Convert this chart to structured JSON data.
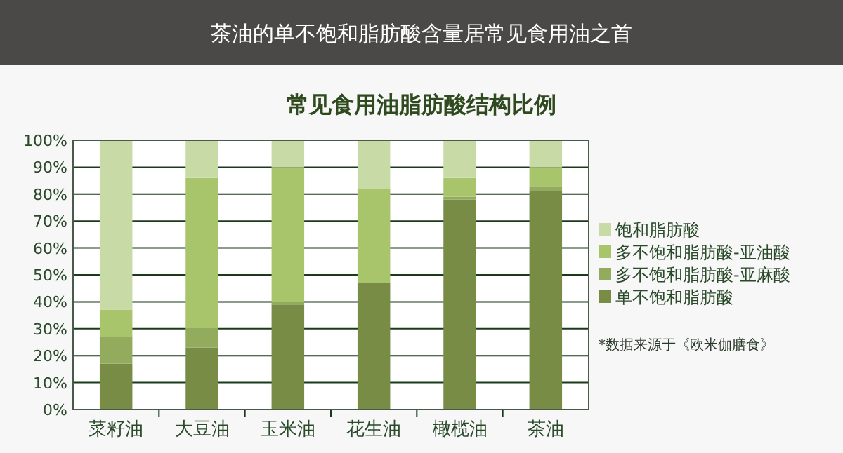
{
  "chart_data": {
    "type": "bar",
    "stacked": true,
    "title": "茶油的单不饱和脂肪酸含量居常见食用油之首",
    "subtitle": "常见食用油脂肪酸结构比例",
    "categories": [
      "菜籽油",
      "大豆油",
      "玉米油",
      "花生油",
      "橄榄油",
      "茶油"
    ],
    "series": [
      {
        "name": "单不饱和脂肪酸",
        "color": "#788c46",
        "values": [
          17,
          23,
          39,
          47,
          78,
          81
        ]
      },
      {
        "name": "多不饱和脂肪酸-亚麻酸",
        "color": "#92ab5c",
        "values": [
          10,
          7,
          1,
          0,
          1,
          2
        ]
      },
      {
        "name": "多不饱和脂肪酸-亚油酸",
        "color": "#a8c56c",
        "values": [
          10,
          56,
          50,
          35,
          7,
          7
        ]
      },
      {
        "name": "饱和脂肪酸",
        "color": "#c8dba6",
        "values": [
          63,
          14,
          10,
          18,
          14,
          10
        ]
      }
    ],
    "ylim": [
      0,
      100
    ],
    "yticks": [
      {
        "value": 0,
        "label": "0%"
      },
      {
        "value": 10,
        "label": "10%"
      },
      {
        "value": 20,
        "label": "20%"
      },
      {
        "value": 30,
        "label": "30%"
      },
      {
        "value": 40,
        "label": "40%"
      },
      {
        "value": 50,
        "label": "50%"
      },
      {
        "value": 60,
        "label": "60%"
      },
      {
        "value": 70,
        "label": "70%"
      },
      {
        "value": 80,
        "label": "80%"
      },
      {
        "value": 90,
        "label": "90%"
      },
      {
        "value": 100,
        "label": "100%"
      }
    ],
    "grid": "y",
    "legend": "right",
    "annotations": [
      "*数据来源于《欧米伽膳食》"
    ]
  }
}
